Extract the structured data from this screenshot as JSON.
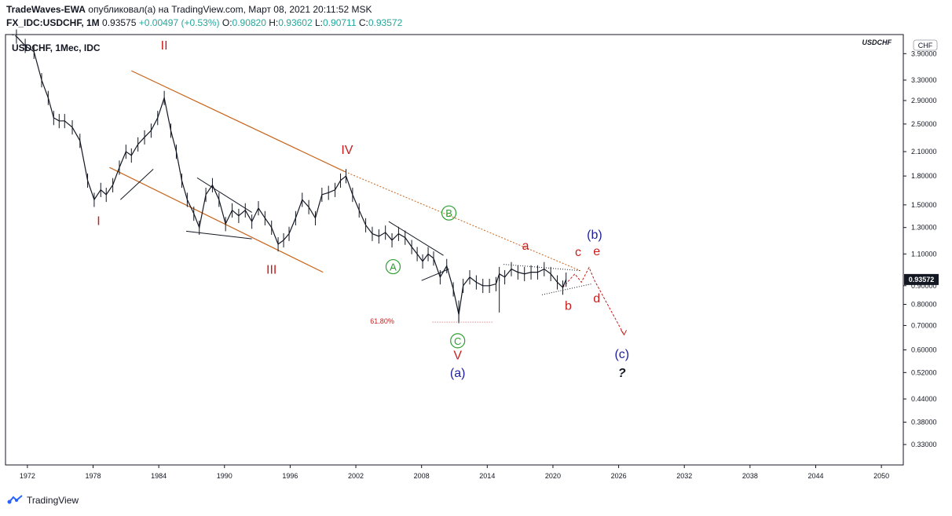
{
  "header": {
    "author": "TradeWaves-EWA",
    "published_text": "опубликовал(а) на TradingView.com, Март 08, 2021 20:11:52 MSK",
    "symbol_line": "FX_IDC:USDCHF, 1M",
    "last": "0.93575",
    "change": "+0.00497 (+0.53%)",
    "open_label": "O:",
    "open": "0.90820",
    "high_label": "H:",
    "high": "0.93602",
    "low_label": "L:",
    "low": "0.90711",
    "close_label": "C:",
    "close": "0.93572"
  },
  "footer": {
    "brand": "TradingView"
  },
  "colors": {
    "candles": "#131722",
    "trendline": "#c8641a",
    "red_label": "#c81e1e",
    "green_label": "#2e9e32",
    "blue_label": "#1e1e9e",
    "axis": "#131722"
  },
  "chart_data": {
    "type": "line",
    "title": "USDCHF, 1Мес, IDC",
    "scale": "log",
    "watermark": "USDCHF",
    "currency_badge": "CHF",
    "price_tag": "0.93572",
    "fib_label": "61.80%",
    "fib_level": 0.72,
    "xlabel": "",
    "ylabel": "",
    "xlim": [
      1970,
      2052
    ],
    "ylim": [
      0.29,
      4.4
    ],
    "x_ticks": [
      "1972",
      "1978",
      "1984",
      "1990",
      "1996",
      "2002",
      "2008",
      "2014",
      "2020",
      "2026",
      "2032",
      "2038",
      "2044",
      "2050"
    ],
    "y_ticks": [
      "0.33000",
      "0.38000",
      "0.44000",
      "0.52000",
      "0.60000",
      "0.70000",
      "0.80000",
      "0.90000",
      "1.10000",
      "1.30000",
      "1.50000",
      "1.80000",
      "2.10000",
      "2.50000",
      "2.90000",
      "3.30000",
      "3.90000"
    ],
    "series": [
      {
        "x": [
          1971.0,
          1971.8,
          1972.6,
          1973.3,
          1973.9,
          1974.4,
          1974.9,
          1975.4,
          1976.1,
          1976.8,
          1977.5,
          1978.1,
          1978.7,
          1979.2,
          1979.8,
          1980.4,
          1981.0,
          1981.5,
          1982.1,
          1982.7,
          1983.3,
          1983.9,
          1984.5,
          1985.1,
          1985.6,
          1986.1,
          1986.6,
          1987.2,
          1987.7,
          1988.3,
          1988.9,
          1989.5,
          1990.1,
          1990.7,
          1991.3,
          1991.9,
          1992.5,
          1993.1,
          1993.7,
          1994.3,
          1994.9,
          1995.4,
          1995.9,
          1996.5,
          1997.1,
          1997.7,
          1998.3,
          1998.9,
          1999.5,
          2000.1,
          2000.6,
          2001.1,
          2001.7,
          2002.3,
          2002.9,
          2003.5,
          2004.1,
          2004.7,
          2005.3,
          2005.9,
          2006.5,
          2007.1,
          2007.6,
          2008.1,
          2008.6,
          2009.1,
          2009.7,
          2010.3,
          2010.9,
          2011.4,
          2011.8,
          2012.4,
          2013.0,
          2013.6,
          2014.2,
          2014.8,
          2015.1,
          2015.6,
          2016.2,
          2016.8,
          2017.4,
          2018.0,
          2018.6,
          2019.2,
          2019.8,
          2020.4,
          2020.9,
          2021.2
        ],
        "values": [
          4.35,
          4.1,
          3.95,
          3.3,
          2.95,
          2.6,
          2.55,
          2.55,
          2.45,
          2.25,
          1.75,
          1.55,
          1.65,
          1.6,
          1.7,
          1.9,
          2.1,
          2.05,
          2.2,
          2.3,
          2.4,
          2.6,
          2.95,
          2.4,
          2.1,
          1.75,
          1.55,
          1.42,
          1.3,
          1.6,
          1.7,
          1.55,
          1.33,
          1.45,
          1.4,
          1.45,
          1.35,
          1.47,
          1.38,
          1.3,
          1.17,
          1.2,
          1.25,
          1.38,
          1.55,
          1.48,
          1.38,
          1.6,
          1.62,
          1.65,
          1.75,
          1.8,
          1.6,
          1.45,
          1.32,
          1.25,
          1.23,
          1.26,
          1.2,
          1.25,
          1.22,
          1.15,
          1.1,
          1.05,
          1.1,
          1.07,
          0.95,
          1.02,
          0.88,
          0.75,
          0.9,
          0.95,
          0.92,
          0.9,
          0.9,
          0.91,
          0.97,
          0.95,
          1.0,
          0.98,
          0.97,
          0.98,
          0.98,
          1.0,
          0.97,
          0.92,
          0.89,
          0.936
        ]
      }
    ],
    "wave_labels": [
      {
        "text": "I",
        "color": "red",
        "x": 1978.5,
        "y": 1.32
      },
      {
        "text": "II",
        "color": "red",
        "x": 1984.5,
        "y": 4.0
      },
      {
        "text": "III",
        "color": "red",
        "x": 1994.3,
        "y": 0.97
      },
      {
        "text": "IV",
        "color": "red",
        "x": 2001.2,
        "y": 2.07
      },
      {
        "text": "V",
        "color": "red",
        "x": 2011.3,
        "y": 0.565
      },
      {
        "text": "(a)",
        "color": "blue",
        "x": 2011.3,
        "y": 0.505
      },
      {
        "text": "A",
        "color": "green",
        "circled": true,
        "x": 2005.4,
        "y": 0.99
      },
      {
        "text": "B",
        "color": "green",
        "circled": true,
        "x": 2010.5,
        "y": 1.39
      },
      {
        "text": "C",
        "color": "green",
        "circled": true,
        "x": 2011.3,
        "y": 0.62
      },
      {
        "text": "a",
        "color": "red",
        "x": 2017.5,
        "y": 1.13
      },
      {
        "text": "b",
        "color": "red",
        "x": 2021.4,
        "y": 0.772
      },
      {
        "text": "c",
        "color": "red",
        "x": 2022.3,
        "y": 1.085
      },
      {
        "text": "d",
        "color": "red",
        "x": 2024.0,
        "y": 0.81
      },
      {
        "text": "e",
        "color": "red",
        "x": 2024.0,
        "y": 1.09
      },
      {
        "text": "(b)",
        "color": "blue",
        "x": 2023.8,
        "y": 1.21
      },
      {
        "text": "(c)",
        "color": "blue",
        "x": 2026.3,
        "y": 0.57
      },
      {
        "text": "?",
        "color": "black",
        "x": 2026.3,
        "y": 0.505
      }
    ]
  }
}
